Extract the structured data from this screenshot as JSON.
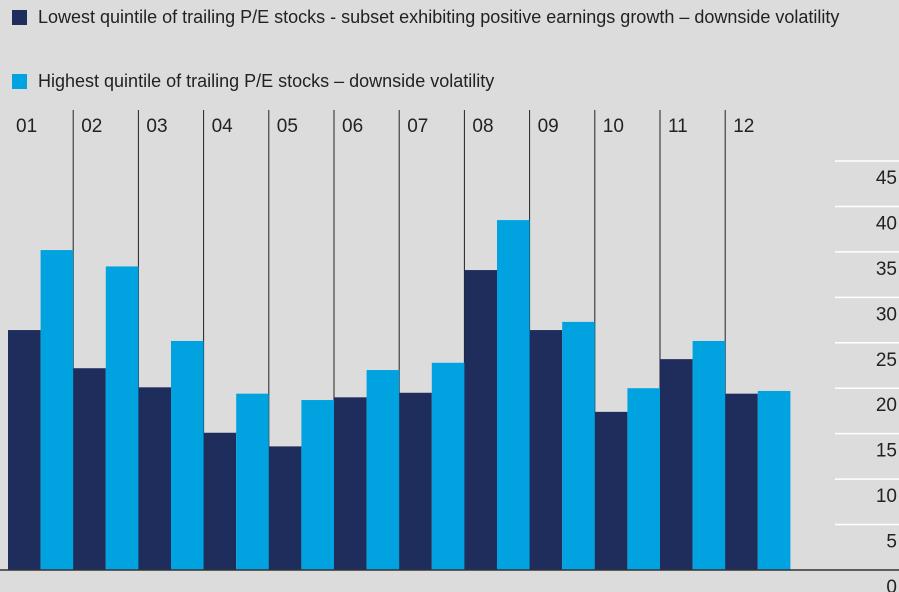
{
  "chart_data": {
    "type": "bar",
    "categories": [
      "01",
      "02",
      "03",
      "04",
      "05",
      "06",
      "07",
      "08",
      "09",
      "10",
      "11",
      "12"
    ],
    "series": [
      {
        "name": "Lowest quintile of trailing P/E stocks - subset exhibiting positive earnings growth – downside volatility",
        "color": "#1f2d5c",
        "values": [
          26.4,
          22.2,
          20.1,
          15.1,
          13.6,
          19.0,
          19.5,
          33.0,
          26.4,
          17.4,
          23.2,
          19.4
        ]
      },
      {
        "name": "Highest quintile of trailing P/E stocks – downside volatility",
        "color": "#00a3e0",
        "values": [
          35.2,
          33.4,
          25.2,
          19.4,
          18.7,
          22.0,
          22.8,
          38.5,
          27.3,
          20.0,
          25.2,
          19.7
        ]
      }
    ],
    "ylim": [
      0,
      45
    ],
    "yticks": [
      0,
      5,
      10,
      15,
      20,
      25,
      30,
      35,
      40,
      45
    ],
    "grid": true
  }
}
